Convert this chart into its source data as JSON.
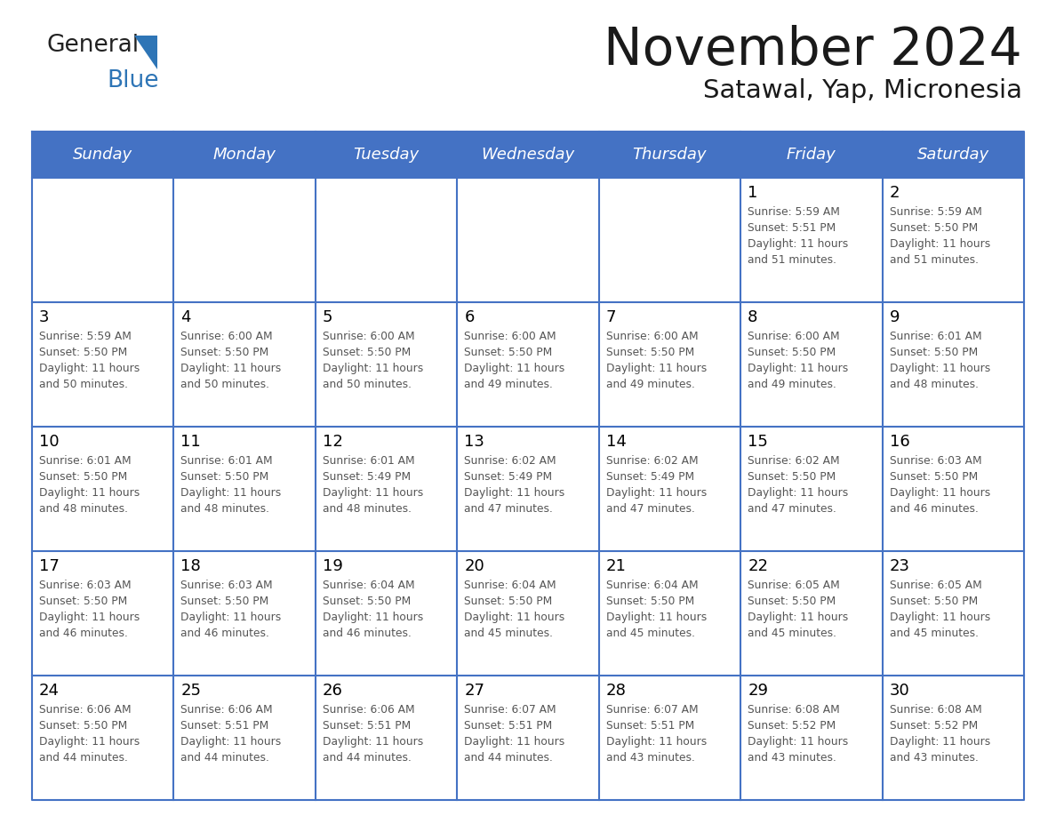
{
  "title": "November 2024",
  "subtitle": "Satawal, Yap, Micronesia",
  "days_of_week": [
    "Sunday",
    "Monday",
    "Tuesday",
    "Wednesday",
    "Thursday",
    "Friday",
    "Saturday"
  ],
  "header_bg": "#4472C4",
  "header_text": "#FFFFFF",
  "cell_bg": "#FFFFFF",
  "grid_line_color": "#4472C4",
  "day_number_color": "#000000",
  "cell_text_color": "#555555",
  "title_color": "#1a1a1a",
  "subtitle_color": "#1a1a1a",
  "calendar_data": [
    [
      null,
      null,
      null,
      null,
      null,
      {
        "day": 1,
        "sunrise": "5:59 AM",
        "sunset": "5:51 PM",
        "daylight_hours": 11,
        "daylight_minutes": 51
      },
      {
        "day": 2,
        "sunrise": "5:59 AM",
        "sunset": "5:50 PM",
        "daylight_hours": 11,
        "daylight_minutes": 51
      }
    ],
    [
      {
        "day": 3,
        "sunrise": "5:59 AM",
        "sunset": "5:50 PM",
        "daylight_hours": 11,
        "daylight_minutes": 50
      },
      {
        "day": 4,
        "sunrise": "6:00 AM",
        "sunset": "5:50 PM",
        "daylight_hours": 11,
        "daylight_minutes": 50
      },
      {
        "day": 5,
        "sunrise": "6:00 AM",
        "sunset": "5:50 PM",
        "daylight_hours": 11,
        "daylight_minutes": 50
      },
      {
        "day": 6,
        "sunrise": "6:00 AM",
        "sunset": "5:50 PM",
        "daylight_hours": 11,
        "daylight_minutes": 49
      },
      {
        "day": 7,
        "sunrise": "6:00 AM",
        "sunset": "5:50 PM",
        "daylight_hours": 11,
        "daylight_minutes": 49
      },
      {
        "day": 8,
        "sunrise": "6:00 AM",
        "sunset": "5:50 PM",
        "daylight_hours": 11,
        "daylight_minutes": 49
      },
      {
        "day": 9,
        "sunrise": "6:01 AM",
        "sunset": "5:50 PM",
        "daylight_hours": 11,
        "daylight_minutes": 48
      }
    ],
    [
      {
        "day": 10,
        "sunrise": "6:01 AM",
        "sunset": "5:50 PM",
        "daylight_hours": 11,
        "daylight_minutes": 48
      },
      {
        "day": 11,
        "sunrise": "6:01 AM",
        "sunset": "5:50 PM",
        "daylight_hours": 11,
        "daylight_minutes": 48
      },
      {
        "day": 12,
        "sunrise": "6:01 AM",
        "sunset": "5:49 PM",
        "daylight_hours": 11,
        "daylight_minutes": 48
      },
      {
        "day": 13,
        "sunrise": "6:02 AM",
        "sunset": "5:49 PM",
        "daylight_hours": 11,
        "daylight_minutes": 47
      },
      {
        "day": 14,
        "sunrise": "6:02 AM",
        "sunset": "5:49 PM",
        "daylight_hours": 11,
        "daylight_minutes": 47
      },
      {
        "day": 15,
        "sunrise": "6:02 AM",
        "sunset": "5:50 PM",
        "daylight_hours": 11,
        "daylight_minutes": 47
      },
      {
        "day": 16,
        "sunrise": "6:03 AM",
        "sunset": "5:50 PM",
        "daylight_hours": 11,
        "daylight_minutes": 46
      }
    ],
    [
      {
        "day": 17,
        "sunrise": "6:03 AM",
        "sunset": "5:50 PM",
        "daylight_hours": 11,
        "daylight_minutes": 46
      },
      {
        "day": 18,
        "sunrise": "6:03 AM",
        "sunset": "5:50 PM",
        "daylight_hours": 11,
        "daylight_minutes": 46
      },
      {
        "day": 19,
        "sunrise": "6:04 AM",
        "sunset": "5:50 PM",
        "daylight_hours": 11,
        "daylight_minutes": 46
      },
      {
        "day": 20,
        "sunrise": "6:04 AM",
        "sunset": "5:50 PM",
        "daylight_hours": 11,
        "daylight_minutes": 45
      },
      {
        "day": 21,
        "sunrise": "6:04 AM",
        "sunset": "5:50 PM",
        "daylight_hours": 11,
        "daylight_minutes": 45
      },
      {
        "day": 22,
        "sunrise": "6:05 AM",
        "sunset": "5:50 PM",
        "daylight_hours": 11,
        "daylight_minutes": 45
      },
      {
        "day": 23,
        "sunrise": "6:05 AM",
        "sunset": "5:50 PM",
        "daylight_hours": 11,
        "daylight_minutes": 45
      }
    ],
    [
      {
        "day": 24,
        "sunrise": "6:06 AM",
        "sunset": "5:50 PM",
        "daylight_hours": 11,
        "daylight_minutes": 44
      },
      {
        "day": 25,
        "sunrise": "6:06 AM",
        "sunset": "5:51 PM",
        "daylight_hours": 11,
        "daylight_minutes": 44
      },
      {
        "day": 26,
        "sunrise": "6:06 AM",
        "sunset": "5:51 PM",
        "daylight_hours": 11,
        "daylight_minutes": 44
      },
      {
        "day": 27,
        "sunrise": "6:07 AM",
        "sunset": "5:51 PM",
        "daylight_hours": 11,
        "daylight_minutes": 44
      },
      {
        "day": 28,
        "sunrise": "6:07 AM",
        "sunset": "5:51 PM",
        "daylight_hours": 11,
        "daylight_minutes": 43
      },
      {
        "day": 29,
        "sunrise": "6:08 AM",
        "sunset": "5:52 PM",
        "daylight_hours": 11,
        "daylight_minutes": 43
      },
      {
        "day": 30,
        "sunrise": "6:08 AM",
        "sunset": "5:52 PM",
        "daylight_hours": 11,
        "daylight_minutes": 43
      }
    ]
  ],
  "logo_blue_color": "#2E75B6",
  "logo_dark_color": "#222222"
}
